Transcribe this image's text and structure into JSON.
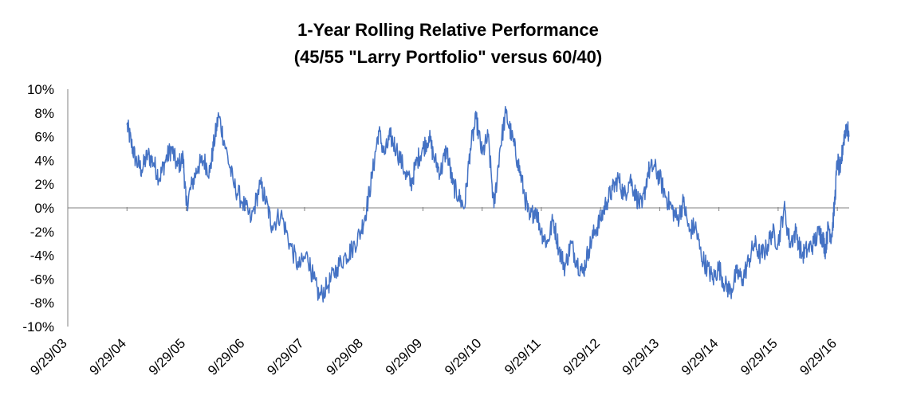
{
  "chart_data": {
    "type": "line",
    "title": "1-Year Rolling Relative Performance",
    "subtitle": "(45/55 \"Larry Portfolio\" versus 60/40)",
    "xlabel": "",
    "ylabel": "",
    "ylim": [
      -10,
      10
    ],
    "ytick_labels": [
      "10%",
      "8%",
      "6%",
      "4%",
      "2%",
      "0%",
      "-2%",
      "-4%",
      "-6%",
      "-8%",
      "-10%"
    ],
    "xtick_labels": [
      "9/29/03",
      "9/29/04",
      "9/29/05",
      "9/29/06",
      "9/29/07",
      "9/29/08",
      "9/29/09",
      "9/29/10",
      "9/29/11",
      "9/29/12",
      "9/29/13",
      "9/29/14",
      "9/29/15",
      "9/29/16"
    ],
    "xlim": [
      2003.75,
      2016.95
    ],
    "grid": false,
    "legend": "none",
    "line_color": "#4472C4",
    "series": [
      {
        "name": "45/55 vs 60/40",
        "x": [
          2004.75,
          2004.82,
          2004.9,
          2005.0,
          2005.1,
          2005.2,
          2005.3,
          2005.4,
          2005.5,
          2005.6,
          2005.7,
          2005.75,
          2005.85,
          2005.95,
          2006.05,
          2006.15,
          2006.22,
          2006.3,
          2006.42,
          2006.55,
          2006.7,
          2006.85,
          2007.0,
          2007.1,
          2007.2,
          2007.35,
          2007.5,
          2007.65,
          2007.8,
          2007.9,
          2008.0,
          2008.15,
          2008.3,
          2008.45,
          2008.55,
          2008.7,
          2008.8,
          2008.9,
          2009.0,
          2009.1,
          2009.2,
          2009.3,
          2009.45,
          2009.55,
          2009.65,
          2009.75,
          2009.85,
          2009.95,
          2010.05,
          2010.15,
          2010.25,
          2010.35,
          2010.45,
          2010.55,
          2010.65,
          2010.75,
          2010.85,
          2010.95,
          2011.05,
          2011.15,
          2011.25,
          2011.35,
          2011.45,
          2011.55,
          2011.65,
          2011.75,
          2011.85,
          2011.95,
          2012.05,
          2012.15,
          2012.25,
          2012.35,
          2012.45,
          2012.55,
          2012.65,
          2012.75,
          2012.85,
          2012.95,
          2013.05,
          2013.15,
          2013.25,
          2013.35,
          2013.45,
          2013.55,
          2013.65,
          2013.75,
          2013.85,
          2013.95,
          2014.05,
          2014.15,
          2014.25,
          2014.35,
          2014.45,
          2014.55,
          2014.65,
          2014.75,
          2014.85,
          2014.95,
          2015.05,
          2015.15,
          2015.25,
          2015.35,
          2015.45,
          2015.55,
          2015.65,
          2015.75,
          2015.85,
          2015.95,
          2016.05,
          2016.15,
          2016.25,
          2016.35,
          2016.45,
          2016.5,
          2016.55,
          2016.6,
          2016.65,
          2016.7,
          2016.75,
          2016.8,
          2016.85,
          2016.9,
          2016.95
        ],
        "values": [
          7.0,
          5.5,
          4.0,
          3.2,
          4.5,
          3.8,
          2.5,
          4.0,
          5.0,
          3.5,
          4.2,
          0.2,
          2.0,
          3.5,
          4.0,
          3.0,
          5.5,
          7.8,
          5.0,
          2.0,
          0.5,
          -1.0,
          2.0,
          0.5,
          -1.5,
          -0.5,
          -3.0,
          -5.0,
          -4.0,
          -6.0,
          -7.5,
          -6.5,
          -5.0,
          -4.0,
          -3.5,
          -2.0,
          0.0,
          3.0,
          6.5,
          4.5,
          6.0,
          5.0,
          3.0,
          2.0,
          4.0,
          5.0,
          6.0,
          4.0,
          3.0,
          5.0,
          2.0,
          1.0,
          0.0,
          5.0,
          7.5,
          4.5,
          6.0,
          0.0,
          5.0,
          8.0,
          6.0,
          4.0,
          1.5,
          -1.0,
          0.0,
          -2.0,
          -3.0,
          -1.0,
          -3.5,
          -5.0,
          -3.0,
          -4.5,
          -5.5,
          -3.5,
          -2.0,
          -1.0,
          0.5,
          1.5,
          2.5,
          1.0,
          2.5,
          1.0,
          0.0,
          3.0,
          3.5,
          2.5,
          1.0,
          0.0,
          -1.0,
          0.5,
          -2.0,
          -1.5,
          -4.0,
          -5.0,
          -6.0,
          -5.0,
          -6.5,
          -7.0,
          -5.5,
          -6.0,
          -4.5,
          -3.0,
          -4.0,
          -3.5,
          -2.0,
          -3.0,
          0.0,
          -3.0,
          -2.0,
          -4.0,
          -3.5,
          -3.0,
          -2.0,
          -2.5,
          -3.5,
          -1.5,
          -2.5,
          0.0,
          4.0,
          3.0,
          5.5,
          7.0,
          6.0
        ]
      }
    ]
  }
}
